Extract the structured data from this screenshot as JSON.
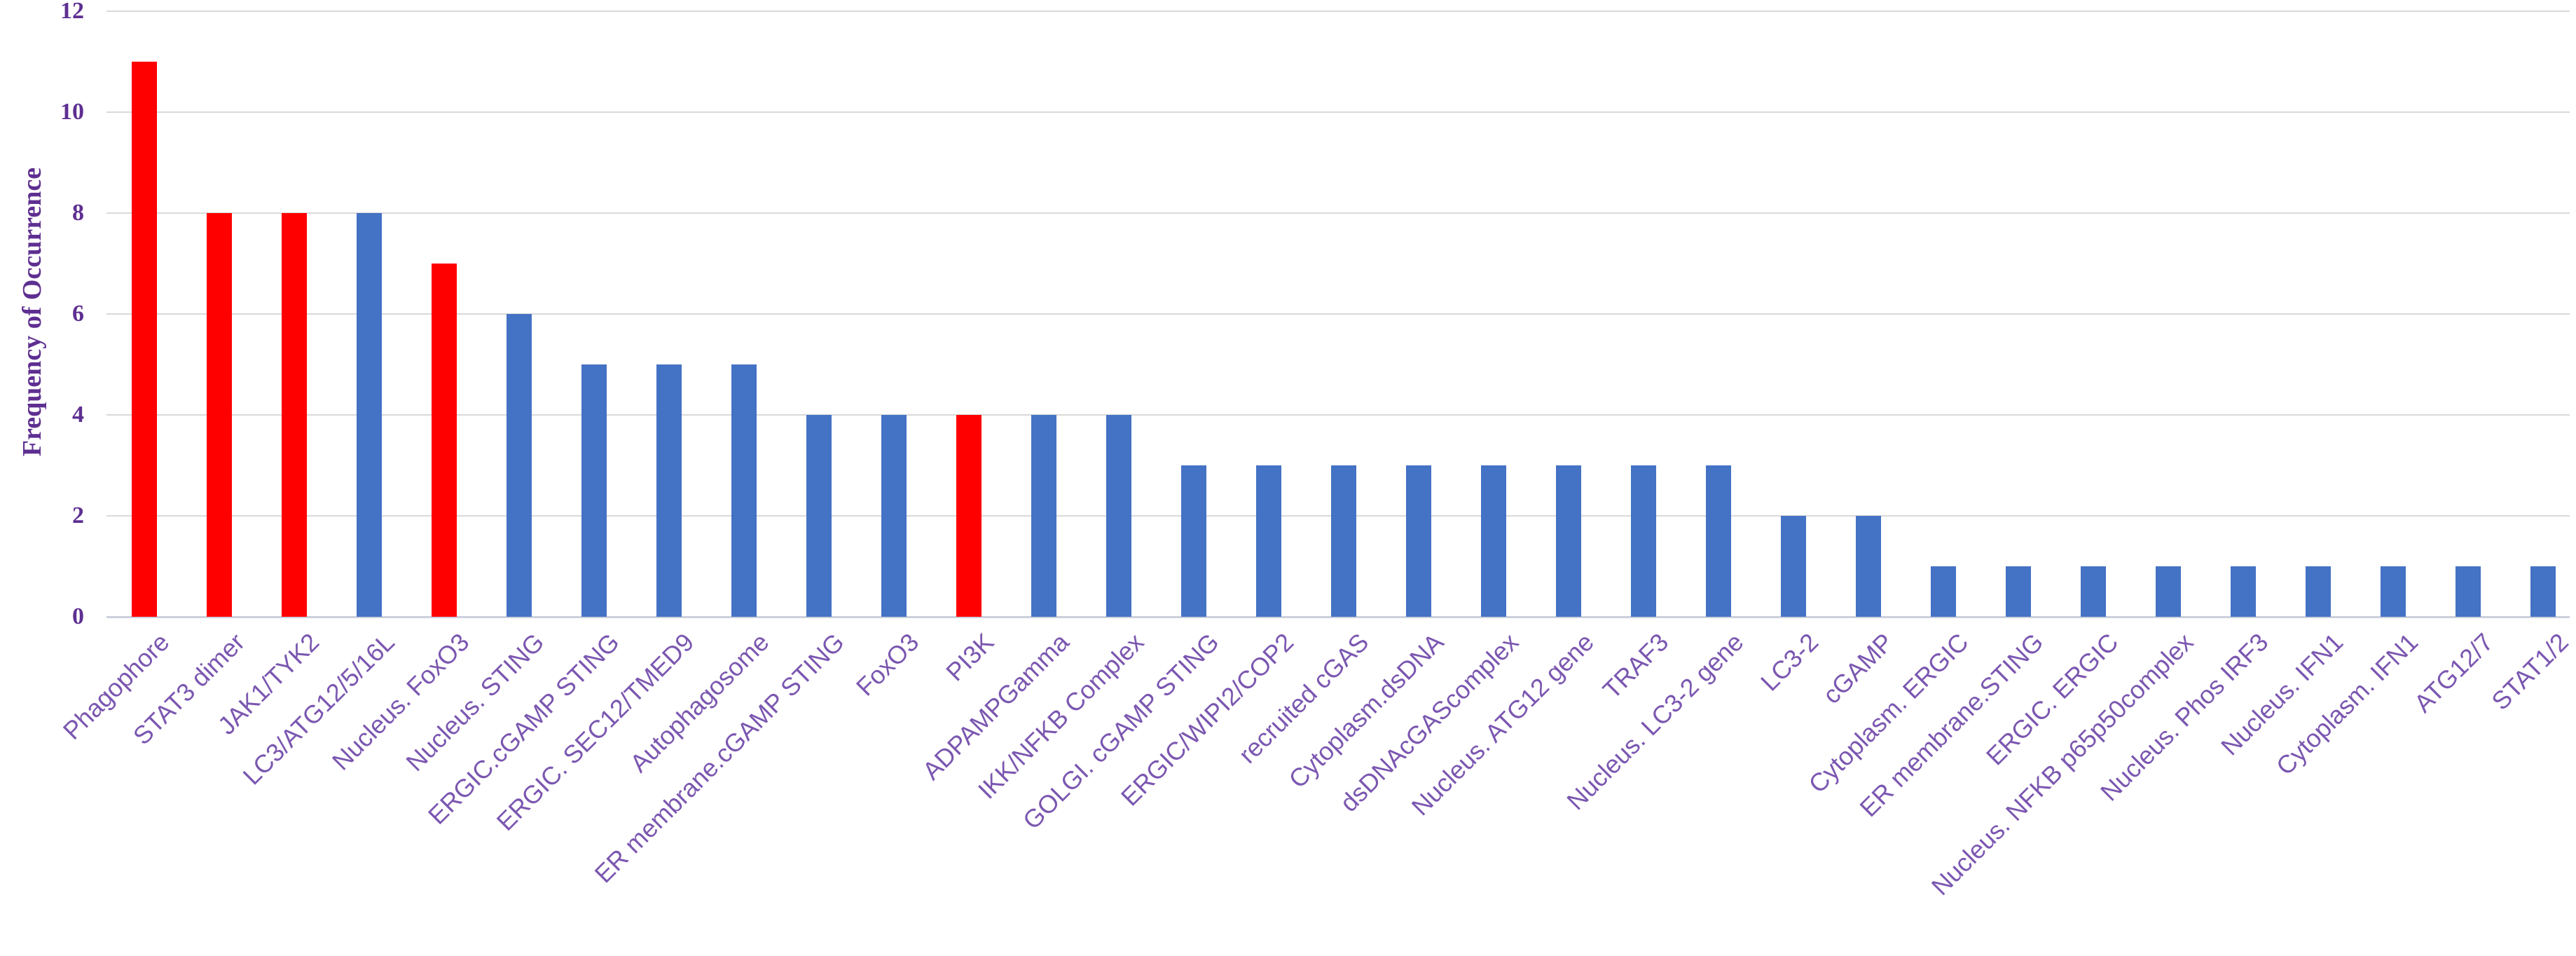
{
  "chart_data": {
    "type": "bar",
    "title": "",
    "xlabel": "",
    "ylabel": "Frequency of Occurrence",
    "ylim": [
      0,
      12
    ],
    "yticks": [
      0,
      2,
      4,
      6,
      8,
      10,
      12
    ],
    "grid": true,
    "legend": false,
    "categories": [
      "Phagophore",
      "STAT3 dimer",
      "JAK1/TYK2",
      "LC3/ATG12/5/16L",
      "Nucleus. FoxO3",
      "Nucleus. STING",
      "ERGIC.cGAMP STING",
      "ERGIC. SEC12/TMED9",
      "Autophagosome",
      "ER membrane.cGAMP STING",
      "FoxO3",
      "PI3K",
      "ADPAMPGamma",
      "IKK/NFKB Complex",
      "GOLGI. cGAMP STING",
      "ERGIC/WIPI2/COP2",
      "recruited cGAS",
      "Cytoplasm.dsDNA",
      "dsDNAcGAScomplex",
      "Nucleus. ATG12 gene",
      "TRAF3",
      "Nucleus. LC3-2 gene",
      "LC3-2",
      "cGAMP",
      "Cytoplasm. ERGIC",
      "ER membrane.STING",
      "ERGIC. ERGIC",
      "Nucleus. NFKB p65p50complex",
      "Nucleus. Phos IRF3",
      "Nucleus. IFN1",
      "Cytoplasm. IFN1",
      "ATG12/7",
      "STAT1/2"
    ],
    "values": [
      11,
      8,
      8,
      8,
      7,
      6,
      5,
      5,
      5,
      4,
      4,
      4,
      4,
      4,
      3,
      3,
      3,
      3,
      3,
      3,
      3,
      3,
      2,
      2,
      1,
      1,
      1,
      1,
      1,
      1,
      1,
      1,
      1
    ],
    "bar_color_keys": [
      "red",
      "red",
      "red",
      "blue",
      "red",
      "blue",
      "blue",
      "blue",
      "blue",
      "blue",
      "blue",
      "red",
      "blue",
      "blue",
      "blue",
      "blue",
      "blue",
      "blue",
      "blue",
      "blue",
      "blue",
      "blue",
      "blue",
      "blue",
      "blue",
      "blue",
      "blue",
      "blue",
      "blue",
      "blue",
      "blue",
      "blue",
      "blue"
    ],
    "highlighted_indices": [
      0,
      1,
      2,
      4,
      11
    ]
  },
  "colors": {
    "bar_blue": "#4472c4",
    "bar_red": "#ff0000",
    "gridline": "#d9d9d9",
    "baseline": "#ccd0dc",
    "axis_text": "#5e2f91",
    "category_text": "#7b57b0",
    "background": "#ffffff"
  }
}
